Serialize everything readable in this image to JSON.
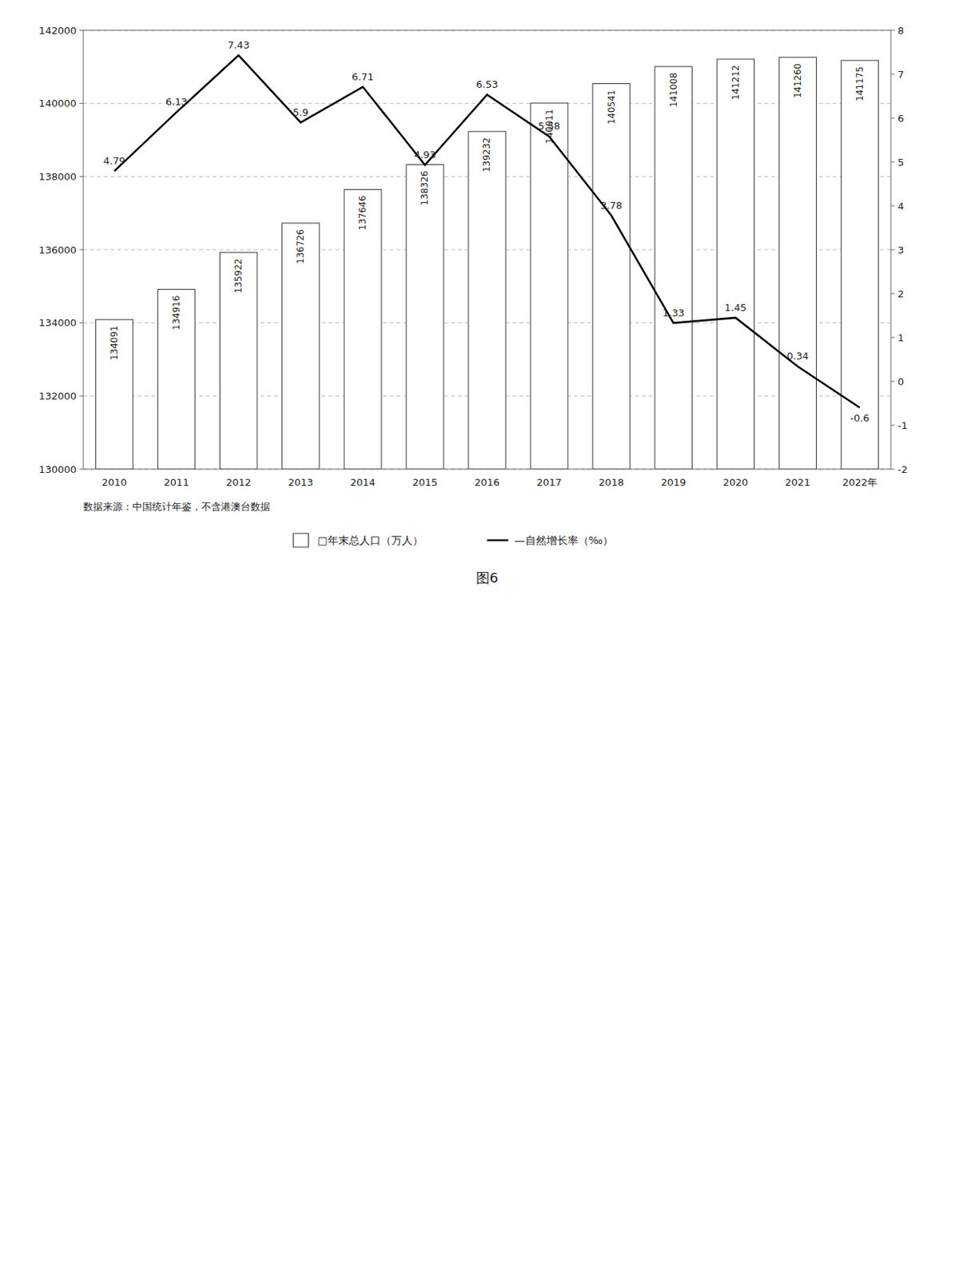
{
  "chart_data": {
    "type": "bar",
    "title": "图6",
    "subtitle": "数据来源：中国统计年鉴，不含港澳台数据",
    "categories": [
      "2010",
      "2011",
      "2012",
      "2013",
      "2014",
      "2015",
      "2016",
      "2017",
      "2018",
      "2019",
      "2020",
      "2021",
      "2022年"
    ],
    "series": [
      {
        "name": "□年末总人口（万人）",
        "type": "bar",
        "color": "#ffffff",
        "values": [
          134091,
          134916,
          135922,
          136726,
          137646,
          138326,
          139232,
          140011,
          140541,
          141008,
          141212,
          141260,
          141175
        ]
      },
      {
        "name": "—自然增长率（‰）",
        "type": "line",
        "axis": "y2",
        "color": "#000000",
        "values": [
          4.79,
          6.13,
          7.43,
          5.9,
          6.71,
          4.93,
          6.53,
          5.58,
          3.78,
          1.33,
          1.45,
          0.34,
          -0.6
        ]
      }
    ],
    "ylim": [
      130000,
      142000
    ],
    "yticks": [
      130000,
      132000,
      134000,
      136000,
      138000,
      140000,
      142000
    ],
    "y2lim": [
      -2,
      8
    ],
    "y2ticks": [
      -2,
      -1,
      0,
      1,
      2,
      3,
      4,
      5,
      6,
      7,
      8
    ],
    "grid": true,
    "legend": "bottom",
    "data_labels": true
  }
}
